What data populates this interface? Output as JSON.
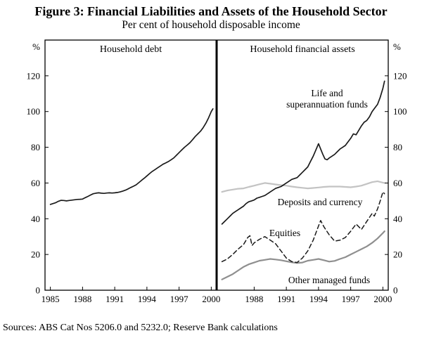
{
  "figure": {
    "title": "Figure 3: Financial Liabilities and Assets of the Household Sector",
    "subtitle": "Per cent of household disposable income",
    "source": "Sources: ABS Cat Nos 5206.0 and 5232.0; Reserve Bank calculations"
  },
  "chart_data": {
    "type": "line",
    "unit": "%",
    "ylabel": "Per cent of household disposable income",
    "xlabel": "",
    "ylim": [
      0,
      140
    ],
    "yticks": [
      0,
      20,
      40,
      60,
      80,
      100,
      120
    ],
    "grid": false,
    "legend_position": "inline-annotations",
    "annotations": {
      "life_super": "Life and\nsuperannuation funds",
      "deposits": "Deposits and currency",
      "equities": "Equities",
      "other_managed": "Other managed funds"
    },
    "panels": [
      {
        "title": "Household debt",
        "xlim": [
          1984.5,
          2000.5
        ],
        "xticks": [
          1985,
          1988,
          1991,
          1994,
          1997,
          2000
        ],
        "series": [
          {
            "name": "Household debt",
            "color": "#1a1a1a",
            "width": 1.7,
            "dash": null,
            "points": [
              [
                1985.0,
                48
              ],
              [
                1985.25,
                48.5
              ],
              [
                1985.5,
                49
              ],
              [
                1985.75,
                49.8
              ],
              [
                1986.0,
                50.3
              ],
              [
                1986.25,
                50.2
              ],
              [
                1986.5,
                50.0
              ],
              [
                1986.75,
                50.2
              ],
              [
                1987.0,
                50.4
              ],
              [
                1987.25,
                50.6
              ],
              [
                1987.5,
                50.8
              ],
              [
                1987.75,
                50.9
              ],
              [
                1988.0,
                51.0
              ],
              [
                1988.25,
                51.8
              ],
              [
                1988.5,
                52.5
              ],
              [
                1988.75,
                53.3
              ],
              [
                1989.0,
                54.0
              ],
              [
                1989.25,
                54.3
              ],
              [
                1989.5,
                54.5
              ],
              [
                1989.75,
                54.3
              ],
              [
                1990.0,
                54.2
              ],
              [
                1990.25,
                54.4
              ],
              [
                1990.5,
                54.5
              ],
              [
                1990.75,
                54.4
              ],
              [
                1991.0,
                54.5
              ],
              [
                1991.25,
                54.7
              ],
              [
                1991.5,
                55.0
              ],
              [
                1991.75,
                55.5
              ],
              [
                1992.0,
                56.0
              ],
              [
                1992.25,
                56.7
              ],
              [
                1992.5,
                57.5
              ],
              [
                1992.75,
                58.2
              ],
              [
                1993.0,
                59.0
              ],
              [
                1993.25,
                60.2
              ],
              [
                1993.5,
                61.5
              ],
              [
                1993.75,
                62.7
              ],
              [
                1994.0,
                64.0
              ],
              [
                1994.25,
                65.3
              ],
              [
                1994.5,
                66.5
              ],
              [
                1994.75,
                67.5
              ],
              [
                1995.0,
                68.5
              ],
              [
                1995.25,
                69.5
              ],
              [
                1995.5,
                70.5
              ],
              [
                1995.75,
                71.2
              ],
              [
                1996.0,
                72.0
              ],
              [
                1996.25,
                73.0
              ],
              [
                1996.5,
                74.0
              ],
              [
                1996.75,
                75.5
              ],
              [
                1997.0,
                77.0
              ],
              [
                1997.25,
                78.5
              ],
              [
                1997.5,
                80.0
              ],
              [
                1997.75,
                81.2
              ],
              [
                1998.0,
                82.5
              ],
              [
                1998.25,
                84.2
              ],
              [
                1998.5,
                86.0
              ],
              [
                1998.75,
                87.5
              ],
              [
                1999.0,
                89.0
              ],
              [
                1999.25,
                91.0
              ],
              [
                1999.5,
                93.5
              ],
              [
                1999.75,
                96.5
              ],
              [
                2000.0,
                100.0
              ],
              [
                2000.15,
                101.5
              ]
            ]
          }
        ]
      },
      {
        "title": "Household financial assets",
        "xlim": [
          1984.5,
          2000.5
        ],
        "xticks": [
          1988,
          1991,
          1994,
          1997,
          2000
        ],
        "series": [
          {
            "name": "Deposits and currency",
            "color": "#c3c3c3",
            "width": 2.2,
            "dash": null,
            "points": [
              [
                1985.0,
                55
              ],
              [
                1985.5,
                55.8
              ],
              [
                1986.0,
                56.3
              ],
              [
                1986.5,
                56.8
              ],
              [
                1987.0,
                57.0
              ],
              [
                1987.5,
                57.8
              ],
              [
                1988.0,
                58.5
              ],
              [
                1988.5,
                59.3
              ],
              [
                1989.0,
                60.0
              ],
              [
                1989.5,
                59.6
              ],
              [
                1990.0,
                59.2
              ],
              [
                1990.5,
                58.8
              ],
              [
                1991.0,
                58.5
              ],
              [
                1991.5,
                58.0
              ],
              [
                1992.0,
                57.6
              ],
              [
                1992.5,
                57.3
              ],
              [
                1993.0,
                57.0
              ],
              [
                1993.5,
                57.2
              ],
              [
                1994.0,
                57.5
              ],
              [
                1994.5,
                57.8
              ],
              [
                1995.0,
                58.0
              ],
              [
                1995.5,
                58.0
              ],
              [
                1996.0,
                58.0
              ],
              [
                1996.5,
                57.8
              ],
              [
                1997.0,
                57.6
              ],
              [
                1997.5,
                58.0
              ],
              [
                1998.0,
                58.5
              ],
              [
                1998.5,
                59.5
              ],
              [
                1999.0,
                60.5
              ],
              [
                1999.5,
                61.0
              ],
              [
                2000.0,
                60.2
              ],
              [
                2000.15,
                60.0
              ]
            ]
          },
          {
            "name": "Other managed funds",
            "color": "#8f8f8f",
            "width": 2.2,
            "dash": null,
            "points": [
              [
                1985.0,
                6
              ],
              [
                1985.5,
                7.5
              ],
              [
                1986.0,
                9
              ],
              [
                1986.5,
                11
              ],
              [
                1987.0,
                13
              ],
              [
                1987.5,
                14.5
              ],
              [
                1988.0,
                15.5
              ],
              [
                1988.5,
                16.5
              ],
              [
                1989.0,
                17
              ],
              [
                1989.5,
                17.5
              ],
              [
                1990.0,
                17.2
              ],
              [
                1990.5,
                16.8
              ],
              [
                1991.0,
                16.2
              ],
              [
                1991.5,
                15.6
              ],
              [
                1992.0,
                15.2
              ],
              [
                1992.5,
                15.5
              ],
              [
                1993.0,
                16.5
              ],
              [
                1993.5,
                17.0
              ],
              [
                1994.0,
                17.5
              ],
              [
                1994.5,
                16.8
              ],
              [
                1995.0,
                16.0
              ],
              [
                1995.5,
                16.4
              ],
              [
                1996.0,
                17.5
              ],
              [
                1996.5,
                18.5
              ],
              [
                1997.0,
                20.0
              ],
              [
                1997.5,
                21.5
              ],
              [
                1998.0,
                23.0
              ],
              [
                1998.5,
                24.5
              ],
              [
                1999.0,
                26.5
              ],
              [
                1999.5,
                29.0
              ],
              [
                2000.0,
                32.0
              ],
              [
                2000.15,
                33.0
              ]
            ]
          },
          {
            "name": "Equities",
            "color": "#1a1a1a",
            "width": 1.5,
            "dash": "6,4",
            "points": [
              [
                1985.0,
                16
              ],
              [
                1985.5,
                17.5
              ],
              [
                1986.0,
                20
              ],
              [
                1986.5,
                23
              ],
              [
                1987.0,
                25.5
              ],
              [
                1987.4,
                29.5
              ],
              [
                1987.6,
                30.5
              ],
              [
                1987.8,
                25.0
              ],
              [
                1988.0,
                26.5
              ],
              [
                1988.5,
                28.5
              ],
              [
                1989.0,
                30.0
              ],
              [
                1989.5,
                28.0
              ],
              [
                1990.0,
                26.0
              ],
              [
                1990.5,
                22.0
              ],
              [
                1991.0,
                18.0
              ],
              [
                1991.5,
                16.0
              ],
              [
                1992.0,
                15.5
              ],
              [
                1992.5,
                18.0
              ],
              [
                1993.0,
                22.0
              ],
              [
                1993.5,
                28.0
              ],
              [
                1994.0,
                36.0
              ],
              [
                1994.2,
                39.0
              ],
              [
                1994.5,
                35.5
              ],
              [
                1995.0,
                31.0
              ],
              [
                1995.5,
                27.5
              ],
              [
                1996.0,
                28.0
              ],
              [
                1996.5,
                29.5
              ],
              [
                1997.0,
                33.0
              ],
              [
                1997.5,
                37.0
              ],
              [
                1998.0,
                34.0
              ],
              [
                1998.5,
                38.5
              ],
              [
                1999.0,
                43.0
              ],
              [
                1999.2,
                41.5
              ],
              [
                1999.5,
                45.5
              ],
              [
                1999.75,
                50.0
              ],
              [
                2000.0,
                55.0
              ],
              [
                2000.15,
                54.0
              ]
            ]
          },
          {
            "name": "Life and superannuation funds",
            "color": "#1a1a1a",
            "width": 1.7,
            "dash": null,
            "points": [
              [
                1985.0,
                37
              ],
              [
                1985.25,
                38.5
              ],
              [
                1985.5,
                40
              ],
              [
                1985.75,
                41.5
              ],
              [
                1986.0,
                43
              ],
              [
                1986.25,
                44
              ],
              [
                1986.5,
                45
              ],
              [
                1986.75,
                46
              ],
              [
                1987.0,
                47
              ],
              [
                1987.25,
                48.5
              ],
              [
                1987.5,
                49.5
              ],
              [
                1987.75,
                50.0
              ],
              [
                1988.0,
                50.5
              ],
              [
                1988.25,
                51.5
              ],
              [
                1988.5,
                52.0
              ],
              [
                1988.75,
                52.5
              ],
              [
                1989.0,
                53.0
              ],
              [
                1989.25,
                54.0
              ],
              [
                1989.5,
                55.0
              ],
              [
                1989.75,
                56.0
              ],
              [
                1990.0,
                57.0
              ],
              [
                1990.25,
                57.5
              ],
              [
                1990.5,
                58.0
              ],
              [
                1990.75,
                59.0
              ],
              [
                1991.0,
                60.0
              ],
              [
                1991.25,
                61.0
              ],
              [
                1991.5,
                62.0
              ],
              [
                1991.75,
                62.5
              ],
              [
                1992.0,
                63.0
              ],
              [
                1992.25,
                64.5
              ],
              [
                1992.5,
                66.0
              ],
              [
                1992.75,
                67.5
              ],
              [
                1993.0,
                69.0
              ],
              [
                1993.25,
                72.0
              ],
              [
                1993.5,
                75.0
              ],
              [
                1993.75,
                78.5
              ],
              [
                1994.0,
                82.0
              ],
              [
                1994.2,
                79.0
              ],
              [
                1994.4,
                76.0
              ],
              [
                1994.6,
                73.5
              ],
              [
                1994.8,
                73.0
              ],
              [
                1995.0,
                74.0
              ],
              [
                1995.25,
                75.0
              ],
              [
                1995.5,
                76.0
              ],
              [
                1995.75,
                77.5
              ],
              [
                1996.0,
                79.0
              ],
              [
                1996.25,
                80.0
              ],
              [
                1996.5,
                81.0
              ],
              [
                1996.75,
                83.0
              ],
              [
                1997.0,
                85.0
              ],
              [
                1997.25,
                87.5
              ],
              [
                1997.5,
                87.0
              ],
              [
                1997.75,
                89.5
              ],
              [
                1998.0,
                92.0
              ],
              [
                1998.25,
                94.0
              ],
              [
                1998.5,
                95.0
              ],
              [
                1998.75,
                97.0
              ],
              [
                1999.0,
                100.0
              ],
              [
                1999.25,
                102.0
              ],
              [
                1999.5,
                104.0
              ],
              [
                1999.75,
                108.0
              ],
              [
                2000.0,
                113.0
              ],
              [
                2000.15,
                117.0
              ]
            ]
          }
        ]
      }
    ]
  }
}
